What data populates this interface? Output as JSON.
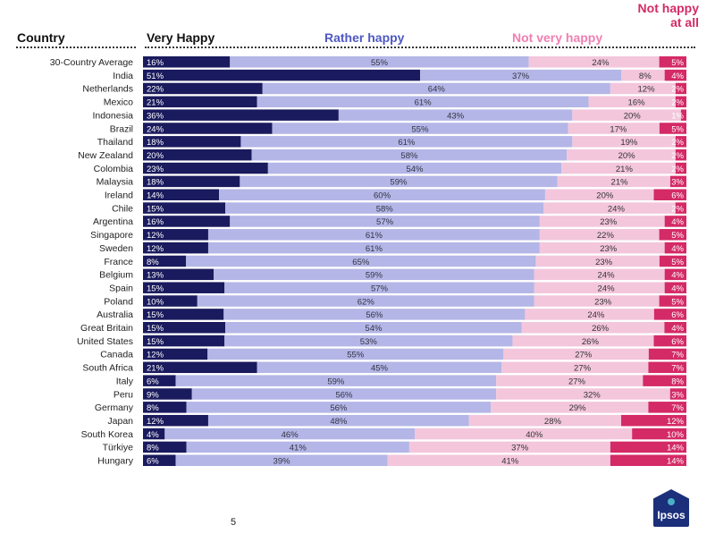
{
  "headers": {
    "country": "Country",
    "very_happy": "Very Happy",
    "rather_happy": "Rather happy",
    "not_very_happy": "Not very happy",
    "not_happy_line1": "Not happy",
    "not_happy_line2": "at all"
  },
  "colors": {
    "very_happy": "#1a1a5e",
    "rather_happy": "#b3b6e6",
    "not_very_happy": "#f3c6dc",
    "not_happy": "#d42a66",
    "header_rather": "#4e58c4",
    "header_not_very": "#f07fb2",
    "header_not_happy": "#d42a66"
  },
  "page_number": "5",
  "logo_text": "Ipsos",
  "chart_data": {
    "type": "bar",
    "stacked": true,
    "orientation": "horizontal",
    "categories": [
      "30-Country Average",
      "India",
      "Netherlands",
      "Mexico",
      "Indonesia",
      "Brazil",
      "Thailand",
      "New Zealand",
      "Colombia",
      "Malaysia",
      "Ireland",
      "Chile",
      "Argentina",
      "Singapore",
      "Sweden",
      "France",
      "Belgium",
      "Spain",
      "Poland",
      "Australia",
      "Great Britain",
      "United States",
      "Canada",
      "South Africa",
      "Italy",
      "Peru",
      "Germany",
      "Japan",
      "South Korea",
      "Türkiye",
      "Hungary"
    ],
    "series": [
      {
        "name": "Very Happy",
        "values": [
          16,
          51,
          22,
          21,
          36,
          24,
          18,
          20,
          23,
          18,
          14,
          15,
          16,
          12,
          12,
          8,
          13,
          15,
          10,
          15,
          15,
          15,
          12,
          21,
          6,
          9,
          8,
          12,
          4,
          8,
          6
        ]
      },
      {
        "name": "Rather happy",
        "values": [
          55,
          37,
          64,
          61,
          43,
          55,
          61,
          58,
          54,
          59,
          60,
          58,
          57,
          61,
          61,
          65,
          59,
          57,
          62,
          56,
          54,
          53,
          55,
          45,
          59,
          56,
          56,
          48,
          46,
          41,
          39
        ]
      },
      {
        "name": "Not very happy",
        "values": [
          24,
          8,
          12,
          16,
          20,
          17,
          19,
          20,
          21,
          21,
          20,
          24,
          23,
          22,
          23,
          23,
          24,
          24,
          23,
          24,
          26,
          26,
          27,
          27,
          27,
          32,
          29,
          28,
          40,
          37,
          41
        ]
      },
      {
        "name": "Not happy at all",
        "values": [
          5,
          4,
          2,
          2,
          1,
          5,
          2,
          2,
          2,
          3,
          6,
          2,
          4,
          5,
          4,
          5,
          4,
          4,
          5,
          6,
          4,
          6,
          7,
          7,
          8,
          3,
          7,
          12,
          10,
          14,
          14
        ]
      }
    ],
    "xlim": [
      0,
      100
    ],
    "grid": false,
    "legend": "top"
  }
}
